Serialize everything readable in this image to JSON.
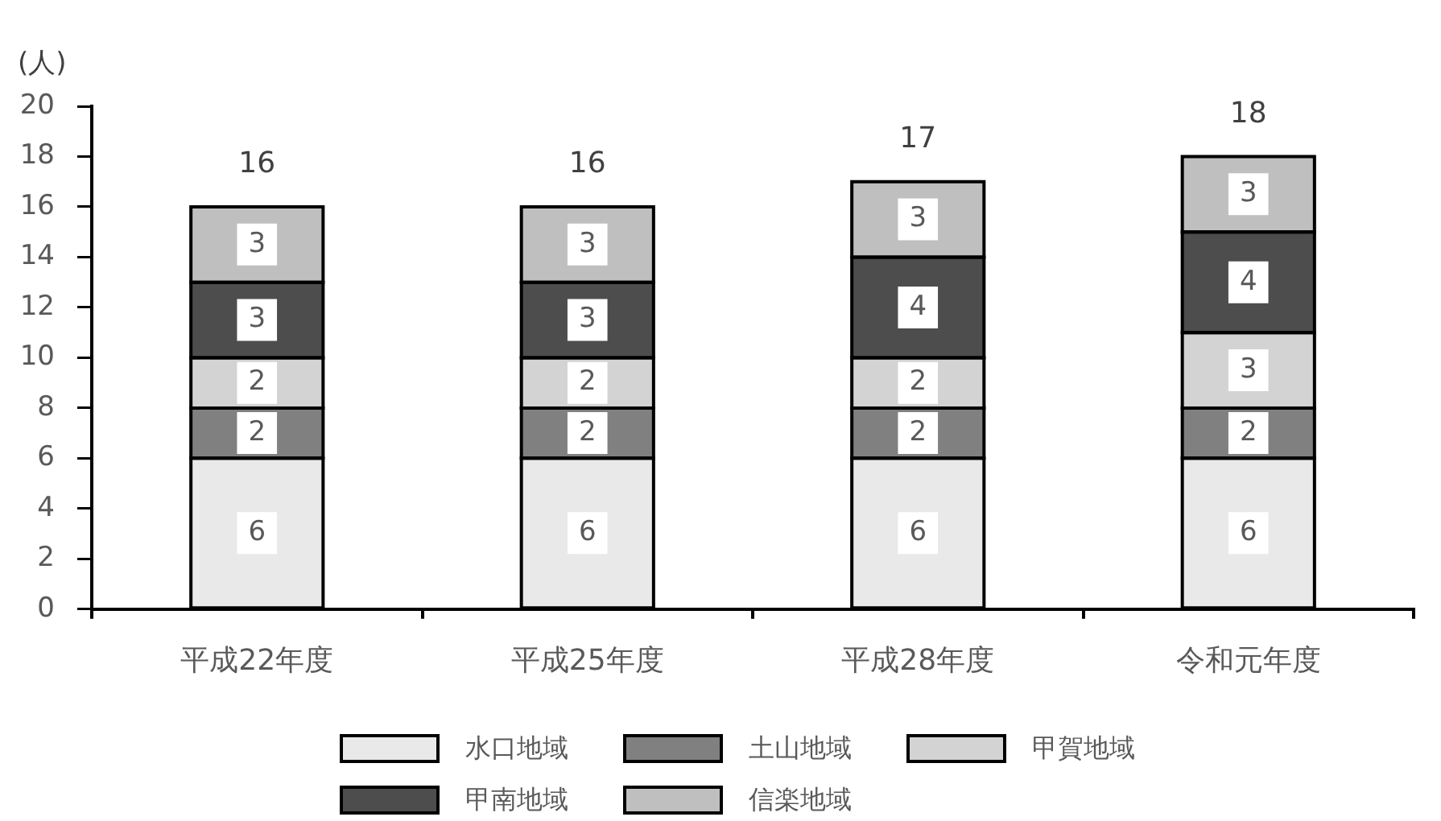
{
  "chart_data": {
    "type": "bar",
    "stacked": true,
    "ylabel": "(人)",
    "categories": [
      "平成22年度",
      "平成25年度",
      "平成28年度",
      "令和元年度"
    ],
    "series": [
      {
        "name": "水口地域",
        "color": "#e9e9e9",
        "values": [
          6,
          6,
          6,
          6
        ]
      },
      {
        "name": "土山地域",
        "color": "#808080",
        "values": [
          2,
          2,
          2,
          2
        ]
      },
      {
        "name": "甲賀地域",
        "color": "#d3d3d3",
        "values": [
          2,
          2,
          2,
          3
        ]
      },
      {
        "name": "甲南地域",
        "color": "#4d4d4d",
        "values": [
          3,
          3,
          4,
          4
        ]
      },
      {
        "name": "信楽地域",
        "color": "#bfbfbf",
        "values": [
          3,
          3,
          3,
          3
        ]
      }
    ],
    "ylim": [
      0,
      20
    ],
    "yticks": [
      0,
      2,
      4,
      6,
      8,
      10,
      12,
      14,
      16,
      18,
      20
    ],
    "grid": false,
    "legend": "bottom",
    "data_labels": true,
    "totals": [
      "16",
      "16",
      "17",
      "18"
    ]
  }
}
